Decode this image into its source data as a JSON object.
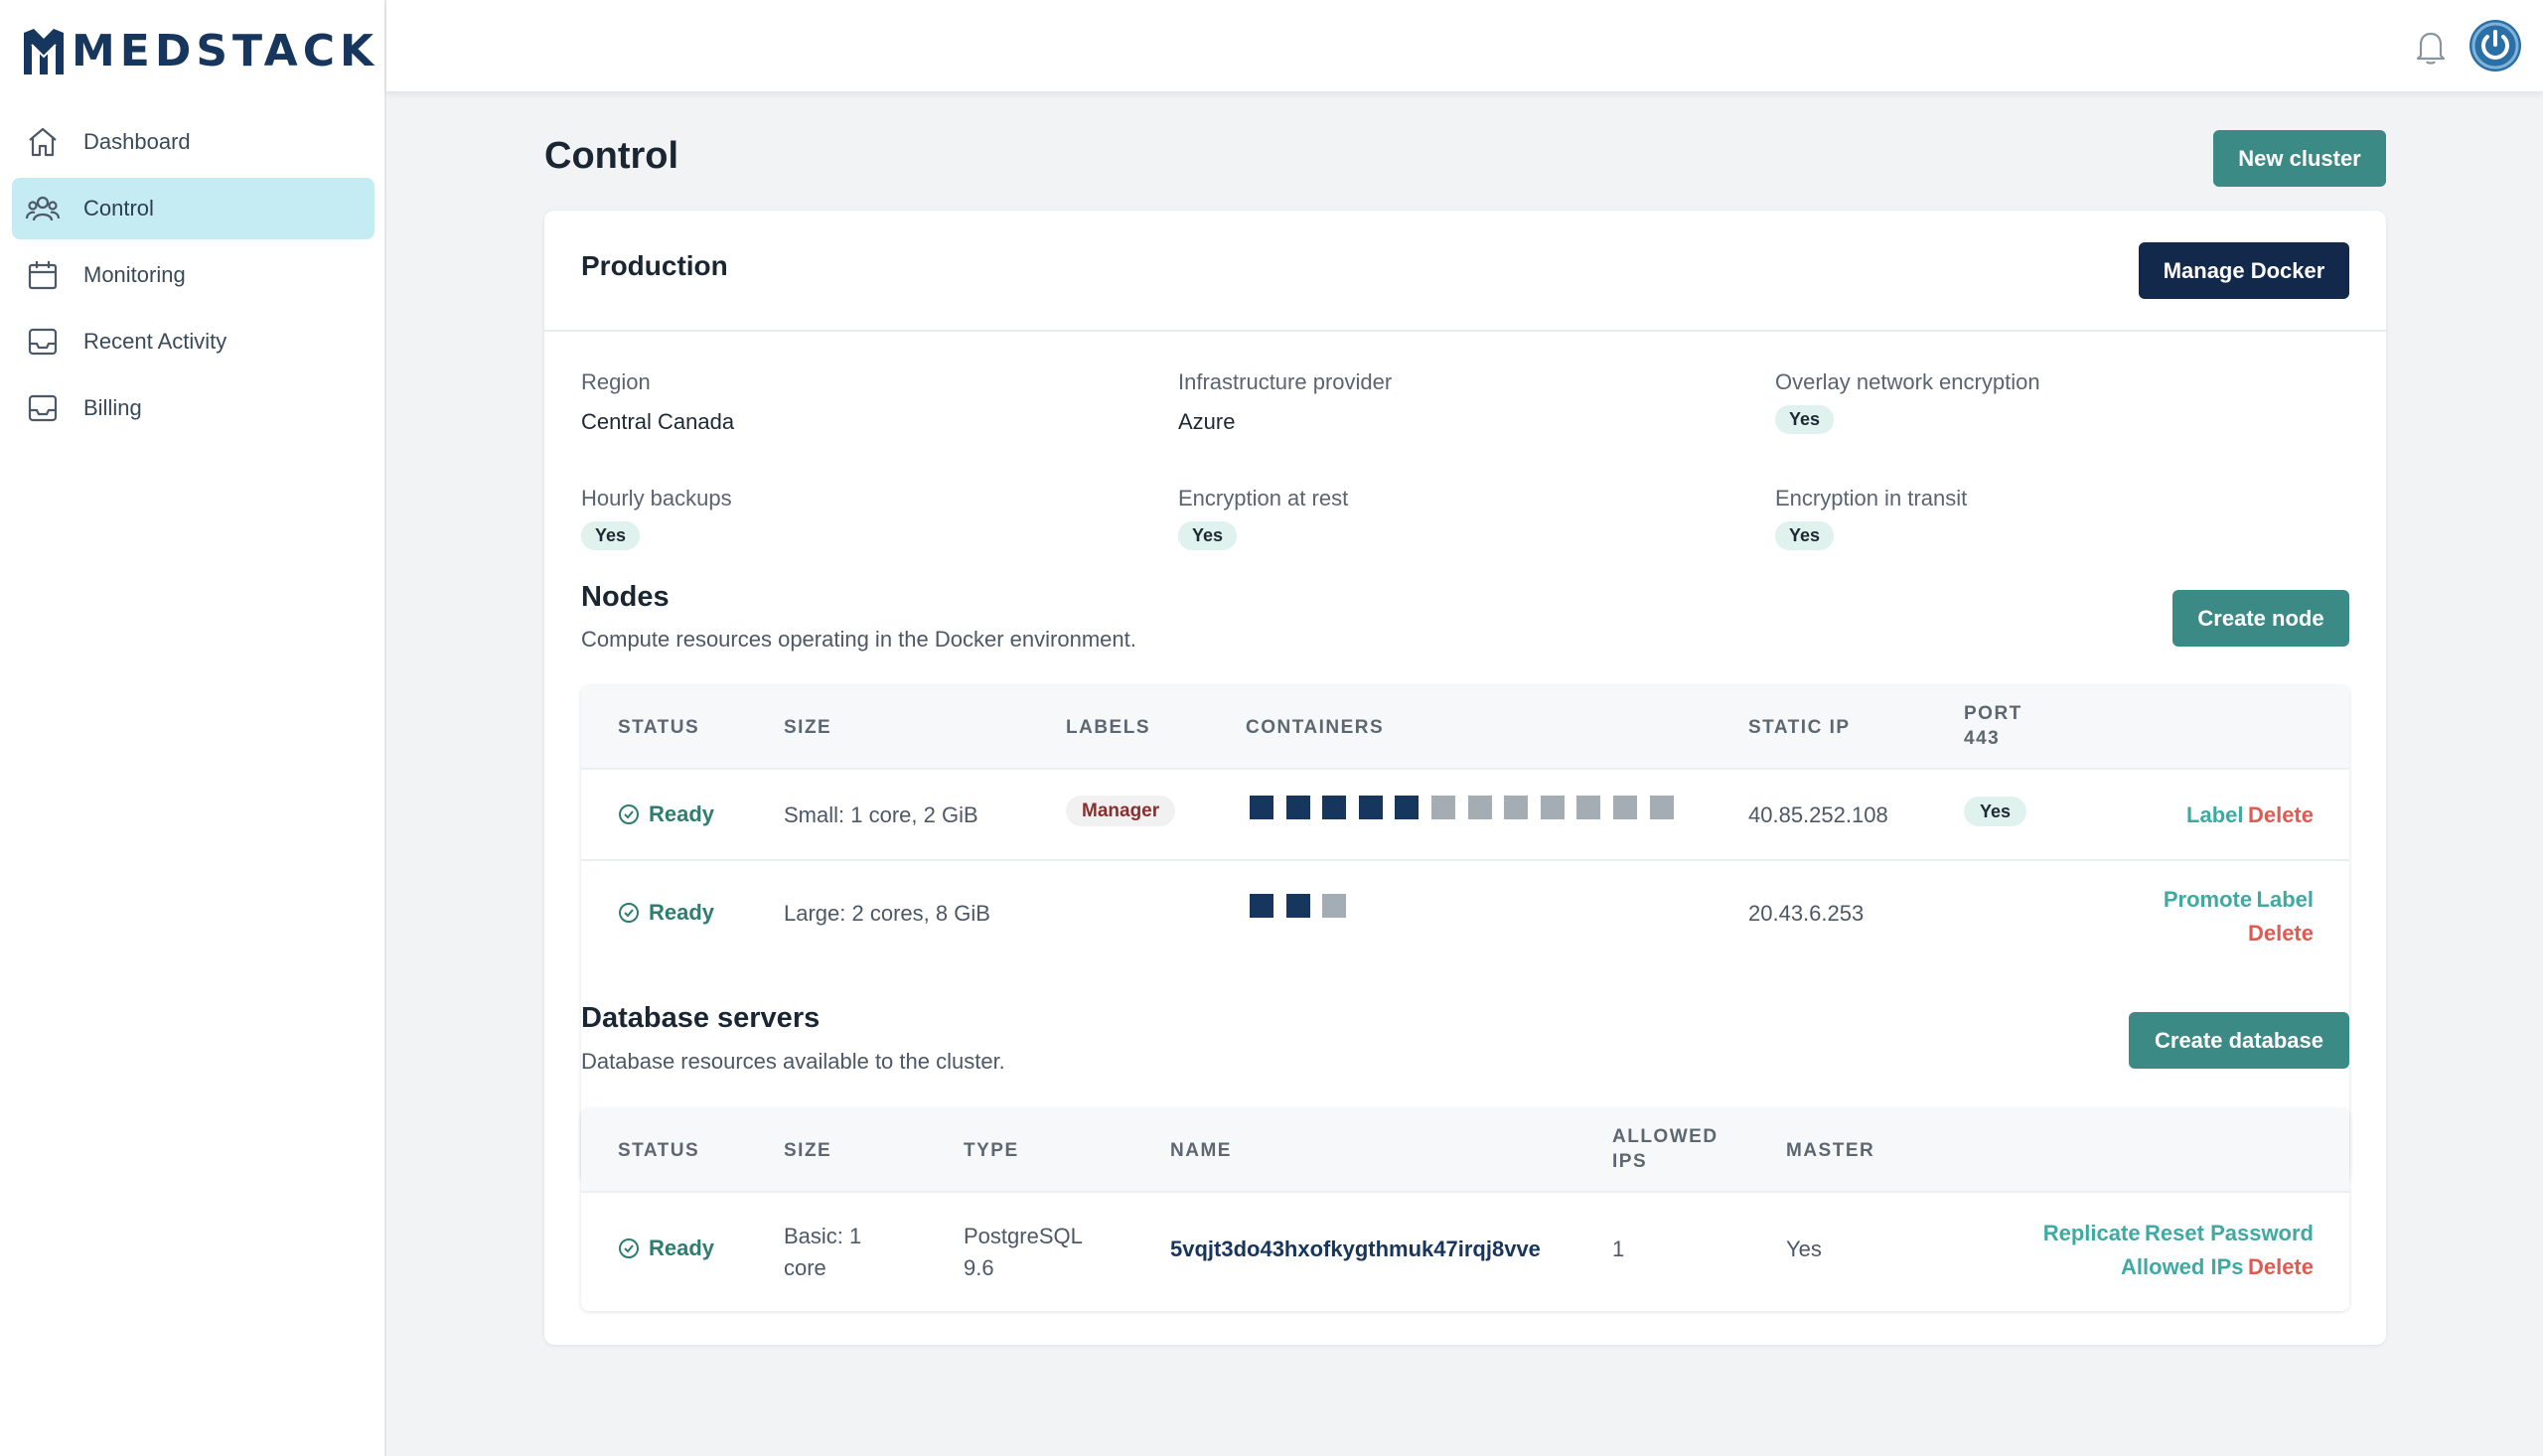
{
  "brand": {
    "name": "MEDSTACK"
  },
  "sidebar": {
    "items": [
      {
        "label": "Dashboard",
        "icon": "home-icon",
        "active": false
      },
      {
        "label": "Control",
        "icon": "users-icon",
        "active": true
      },
      {
        "label": "Monitoring",
        "icon": "calendar-icon",
        "active": false
      },
      {
        "label": "Recent Activity",
        "icon": "inbox-icon",
        "active": false
      },
      {
        "label": "Billing",
        "icon": "inbox-icon",
        "active": false
      }
    ]
  },
  "topbar": {
    "icons": [
      "bell-icon",
      "power-icon"
    ]
  },
  "page": {
    "title": "Control",
    "new_cluster_label": "New cluster"
  },
  "cluster": {
    "name": "Production",
    "manage_docker_label": "Manage Docker",
    "fields": {
      "region": {
        "label": "Region",
        "value": "Central Canada"
      },
      "provider": {
        "label": "Infrastructure provider",
        "value": "Azure"
      },
      "overlay": {
        "label": "Overlay network encryption",
        "value": "Yes"
      },
      "backups": {
        "label": "Hourly backups",
        "value": "Yes"
      },
      "at_rest": {
        "label": "Encryption at rest",
        "value": "Yes"
      },
      "in_transit": {
        "label": "Encryption in transit",
        "value": "Yes"
      }
    }
  },
  "nodes": {
    "title": "Nodes",
    "subtitle": "Compute resources operating in the Docker environment.",
    "create_label": "Create node",
    "columns": {
      "status": "STATUS",
      "size": "SIZE",
      "labels": "LABELS",
      "containers": "CONTAINERS",
      "static_ip": "STATIC IP",
      "port_line1": "PORT",
      "port_line2": "443"
    },
    "rows": [
      {
        "status": "Ready",
        "size": "Small: 1 core, 2 GiB",
        "label": "Manager",
        "containers_used": 5,
        "containers_total": 12,
        "ip": "40.85.252.108",
        "port": "Yes",
        "action_1": "Label",
        "action_2": "Delete"
      },
      {
        "status": "Ready",
        "size": "Large: 2 cores, 8 GiB",
        "label": "",
        "containers_used": 2,
        "containers_total": 3,
        "ip": "20.43.6.253",
        "port": "",
        "action_1": "Promote",
        "action_2": "Label",
        "action_3": "Delete"
      }
    ]
  },
  "databases": {
    "title": "Database servers",
    "subtitle": "Database resources available to the cluster.",
    "create_label": "Create database",
    "columns": {
      "status": "STATUS",
      "size": "SIZE",
      "type": "TYPE",
      "name": "NAME",
      "allowed_line1": "ALLOWED",
      "allowed_line2": "IPS",
      "master": "MASTER"
    },
    "rows": [
      {
        "status": "Ready",
        "size_line1": "Basic: 1",
        "size_line2": "core",
        "type_line1": "PostgreSQL",
        "type_line2": "9.6",
        "name": "5vqjt3do43hxofkygthmuk47irqj8vve",
        "allowed_ips": "1",
        "master": "Yes",
        "action_replicate": "Replicate",
        "action_reset": "Reset Password",
        "action_allowed": "Allowed IPs",
        "action_delete": "Delete"
      }
    ]
  },
  "colors": {
    "accent_teal": "#3c8a86",
    "navy": "#13294b",
    "active_nav": "#c6ecf3",
    "danger": "#e05a54"
  }
}
